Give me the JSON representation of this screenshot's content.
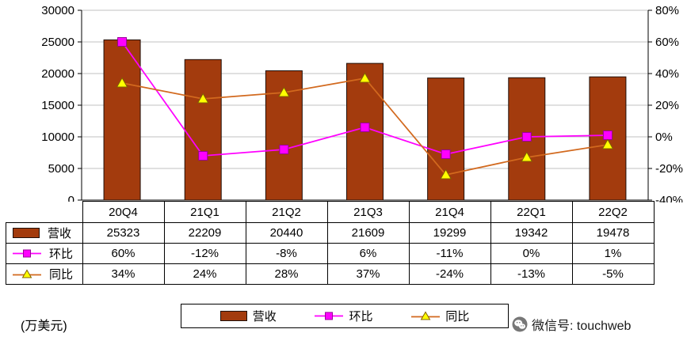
{
  "chart_data": {
    "type": "combo",
    "categories": [
      "20Q4",
      "21Q1",
      "21Q2",
      "21Q3",
      "21Q4",
      "22Q1",
      "22Q2"
    ],
    "series": [
      {
        "name": "营收",
        "type": "bar",
        "axis": "left",
        "values": [
          25323,
          22209,
          20440,
          21609,
          19299,
          19342,
          19478
        ]
      },
      {
        "name": "环比",
        "type": "line",
        "marker": "square",
        "axis": "right",
        "values": [
          60,
          -12,
          -8,
          6,
          -11,
          0,
          1
        ]
      },
      {
        "name": "同比",
        "type": "line",
        "marker": "triangle",
        "axis": "right",
        "values": [
          34,
          24,
          28,
          37,
          -24,
          -13,
          -5
        ]
      }
    ],
    "left_axis": {
      "min": 0,
      "max": 30000,
      "step": 5000,
      "tick_labels": [
        "0",
        "5000",
        "10000",
        "15000",
        "20000",
        "25000",
        "30000"
      ]
    },
    "right_axis": {
      "min": -40,
      "max": 80,
      "step": 20,
      "tick_labels": [
        "-40%",
        "-20%",
        "0%",
        "20%",
        "40%",
        "60%",
        "80%"
      ]
    },
    "grid": true,
    "legend_position": "bottom",
    "title": "",
    "unit": "(万美元)"
  },
  "table": {
    "header": [
      "",
      "20Q4",
      "21Q1",
      "21Q2",
      "21Q3",
      "21Q4",
      "22Q1",
      "22Q2"
    ],
    "rows": [
      {
        "label": "营收",
        "icon": "bar-swatch",
        "cells": [
          "25323",
          "22209",
          "20440",
          "21609",
          "19299",
          "19342",
          "19478"
        ]
      },
      {
        "label": "环比",
        "icon": "square-marker",
        "cells": [
          "60%",
          "-12%",
          "-8%",
          "6%",
          "-11%",
          "0%",
          "1%"
        ]
      },
      {
        "label": "同比",
        "icon": "triangle-marker",
        "cells": [
          "34%",
          "24%",
          "28%",
          "37%",
          "-24%",
          "-13%",
          "-5%"
        ]
      }
    ]
  },
  "legend": {
    "items": [
      {
        "label": "营收",
        "icon": "bar-swatch"
      },
      {
        "label": "环比",
        "icon": "square-marker"
      },
      {
        "label": "同比",
        "icon": "triangle-marker"
      }
    ]
  },
  "footer": {
    "unit_label": "(万美元)",
    "wechat_label": "微信号: touchweb"
  },
  "colors": {
    "bar": "#A33B0D",
    "bar_border": "#20100A",
    "qoq_line": "#FF00FF",
    "qoq_marker": "#FF00FF",
    "yoy_line": "#D2691E",
    "yoy_marker": "#FFFF00",
    "grid": "#C0C0C0",
    "axis": "#000000"
  }
}
